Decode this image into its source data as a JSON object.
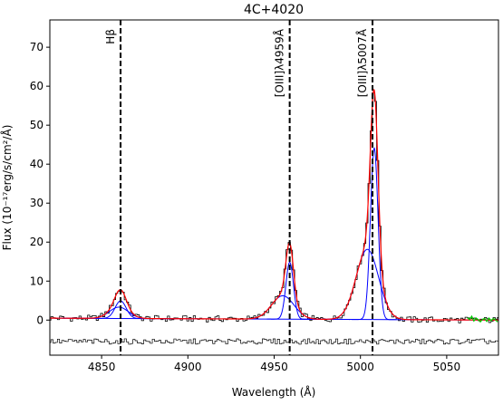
{
  "chart_data": {
    "type": "line",
    "title": "4C+4020",
    "xlabel": "Wavelength (Å)",
    "ylabel": "Flux (10⁻¹⁷erg/s/cm²/Å)",
    "xlim": [
      4820,
      5080
    ],
    "ylim": [
      -9,
      77
    ],
    "xticks": [
      4850,
      4900,
      4950,
      5000,
      5050
    ],
    "yticks": [
      0,
      10,
      20,
      30,
      40,
      50,
      60,
      70
    ],
    "grid": false,
    "legend": "none",
    "vlines": [
      {
        "x": 4861,
        "label": "Hβ"
      },
      {
        "x": 4959,
        "label": "[OIII]λ4959Å"
      },
      {
        "x": 5007,
        "label": "[OIII]λ5007Å"
      }
    ],
    "components": [
      {
        "kind": "gaussian",
        "center": 4861,
        "amp": 4.5,
        "sigma": 3.2,
        "color": "#0000ff"
      },
      {
        "kind": "gaussian",
        "center": 4860,
        "amp": 2.9,
        "sigma": 5.5,
        "color": "#0000ff"
      },
      {
        "kind": "gaussian",
        "center": 4959,
        "amp": 14.6,
        "sigma": 2.2,
        "color": "#0000ff"
      },
      {
        "kind": "gaussian",
        "center": 4955,
        "amp": 6.0,
        "sigma": 6.5,
        "color": "#0000ff"
      },
      {
        "kind": "gaussian",
        "center": 5008,
        "amp": 44.0,
        "sigma": 2.2,
        "color": "#0000ff"
      },
      {
        "kind": "gaussian",
        "center": 5004,
        "amp": 18.0,
        "sigma": 6.5,
        "color": "#0000ff"
      }
    ],
    "continuum": {
      "x0": 4820,
      "y0": 0.5,
      "x1": 5080,
      "y1": 0.0,
      "color": "#0000ff"
    },
    "model_color": "#ff0000",
    "data_color": "#000000",
    "residual_offset": -5.5,
    "extra_segment": {
      "x_start": 5062,
      "x_end": 5080,
      "color": "#00cc00"
    }
  }
}
